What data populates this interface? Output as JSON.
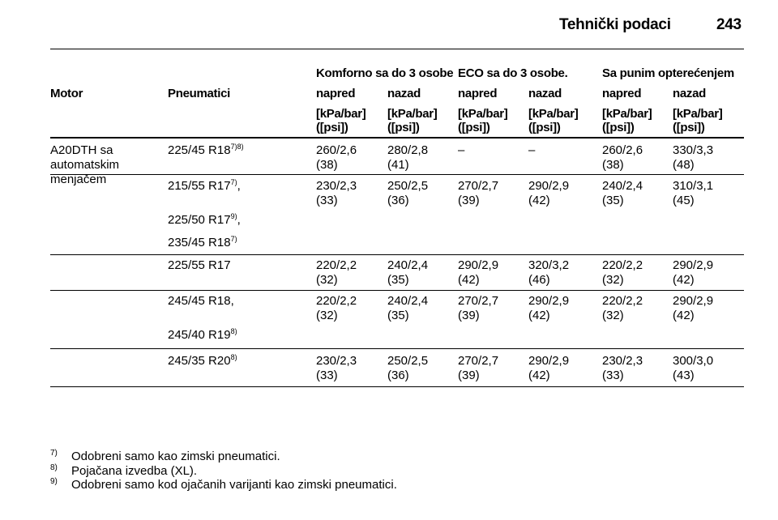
{
  "header": {
    "title": "Tehnički podaci",
    "page": "243"
  },
  "table": {
    "groups": [
      "Komforno sa do 3 osobe",
      "ECO sa do 3 osobe.",
      "Sa punim opterećenjem"
    ],
    "columns": [
      "Motor",
      "Pneumatici",
      "napred",
      "nazad",
      "napred",
      "nazad",
      "napred",
      "nazad"
    ],
    "units": [
      [
        "[kPa/bar]",
        "([psi])"
      ],
      [
        "[kPa/bar]",
        "([psi])"
      ],
      [
        "[kPa/bar]",
        "([psi])"
      ],
      [
        "[kPa/bar]",
        "([psi])"
      ],
      [
        "[kPa/bar]",
        "([psi])"
      ],
      [
        "[kPa/bar]",
        "([psi])"
      ]
    ],
    "motor": [
      "A20DTH sa",
      "automatskim",
      "menjačem"
    ],
    "rows": [
      {
        "tires": [
          {
            "name": "225/45 R18",
            "note": "7)8)"
          }
        ],
        "values": [
          [
            "260/2,6",
            "(38)"
          ],
          [
            "280/2,8",
            "(41)"
          ],
          [
            "–"
          ],
          [
            "–"
          ],
          [
            "260/2,6",
            "(38)"
          ],
          [
            "330/3,3",
            "(48)"
          ]
        ]
      },
      {
        "tires": [
          {
            "name": "215/55 R17",
            "note": "7)",
            "suffix": ","
          },
          {
            "name": "225/50 R17",
            "note": "9)",
            "suffix": ","
          },
          {
            "name": "235/45 R18",
            "note": "7)"
          }
        ],
        "values": [
          [
            "230/2,3",
            "(33)"
          ],
          [
            "250/2,5",
            "(36)"
          ],
          [
            "270/2,7",
            "(39)"
          ],
          [
            "290/2,9",
            "(42)"
          ],
          [
            "240/2,4",
            "(35)"
          ],
          [
            "310/3,1",
            "(45)"
          ]
        ]
      },
      {
        "tires": [
          {
            "name": "225/55 R17"
          }
        ],
        "values": [
          [
            "220/2,2",
            "(32)"
          ],
          [
            "240/2,4",
            "(35)"
          ],
          [
            "290/2,9",
            "(42)"
          ],
          [
            "320/3,2",
            "(46)"
          ],
          [
            "220/2,2",
            "(32)"
          ],
          [
            "290/2,9",
            "(42)"
          ]
        ]
      },
      {
        "tires": [
          {
            "name": "245/45 R18,"
          },
          {
            "name": "245/40 R19",
            "note": "8)"
          }
        ],
        "values": [
          [
            "220/2,2",
            "(32)"
          ],
          [
            "240/2,4",
            "(35)"
          ],
          [
            "270/2,7",
            "(39)"
          ],
          [
            "290/2,9",
            "(42)"
          ],
          [
            "220/2,2",
            "(32)"
          ],
          [
            "290/2,9",
            "(42)"
          ]
        ]
      },
      {
        "tires": [
          {
            "name": "245/35 R20",
            "note": "8)"
          }
        ],
        "values": [
          [
            "230/2,3",
            "(33)"
          ],
          [
            "250/2,5",
            "(36)"
          ],
          [
            "270/2,7",
            "(39)"
          ],
          [
            "290/2,9",
            "(42)"
          ],
          [
            "230/2,3",
            "(33)"
          ],
          [
            "300/3,0",
            "(43)"
          ]
        ]
      }
    ]
  },
  "footnotes": [
    {
      "mark": "7)",
      "text": "Odobreni samo kao zimski pneumatici."
    },
    {
      "mark": "8)",
      "text": "Pojačana izvedba (XL)."
    },
    {
      "mark": "9)",
      "text": "Odobreni samo kod ojačanih varijanti kao zimski pneumatici."
    }
  ]
}
